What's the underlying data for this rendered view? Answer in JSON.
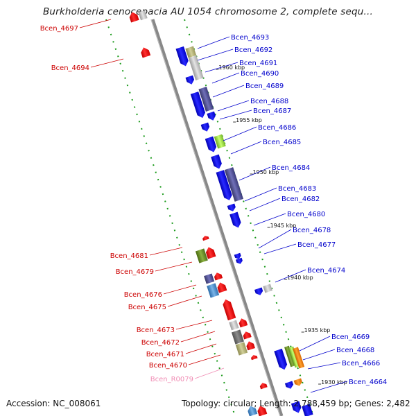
{
  "title": "Burkholderia cenocepacia AU 1054 chromosome 2, complete sequ...",
  "footer": {
    "accession": "Accession: NC_008061",
    "summary": "Topology: circular; Length: 2,788,459 bp; Genes: 2,482"
  },
  "colors": {
    "forward_label": "#0000cc",
    "reverse_label": "#cc0000",
    "rna_label": "#f08cb4",
    "backbone": "#808080",
    "tick": "#1a9a1a"
  },
  "ticks": [
    {
      "label": "1960 kbp"
    },
    {
      "label": "1955 kbp"
    },
    {
      "label": "1950 kbp"
    },
    {
      "label": "1945 kbp"
    },
    {
      "label": "1940 kbp"
    },
    {
      "label": "1935 kbp"
    },
    {
      "label": "1930 kbp"
    }
  ],
  "forward_genes": [
    "Bcen_4693",
    "Bcen_4692",
    "Bcen_4691",
    "Bcen_4690",
    "Bcen_4689",
    "Bcen_4688",
    "Bcen_4687",
    "Bcen_4686",
    "Bcen_4685",
    "Bcen_4684",
    "Bcen_4683",
    "Bcen_4682",
    "Bcen_4680",
    "Bcen_4678",
    "Bcen_4677",
    "Bcen_4674",
    "Bcen_4669",
    "Bcen_4668",
    "Bcen_4666",
    "Bcen_4664"
  ],
  "reverse_genes": [
    "Bcen_4697",
    "Bcen_4694",
    "Bcen_4681",
    "Bcen_4679",
    "Bcen_4676",
    "Bcen_4675",
    "Bcen_4673",
    "Bcen_4672",
    "Bcen_4671",
    "Bcen_4670",
    "Bcen_R0079"
  ]
}
